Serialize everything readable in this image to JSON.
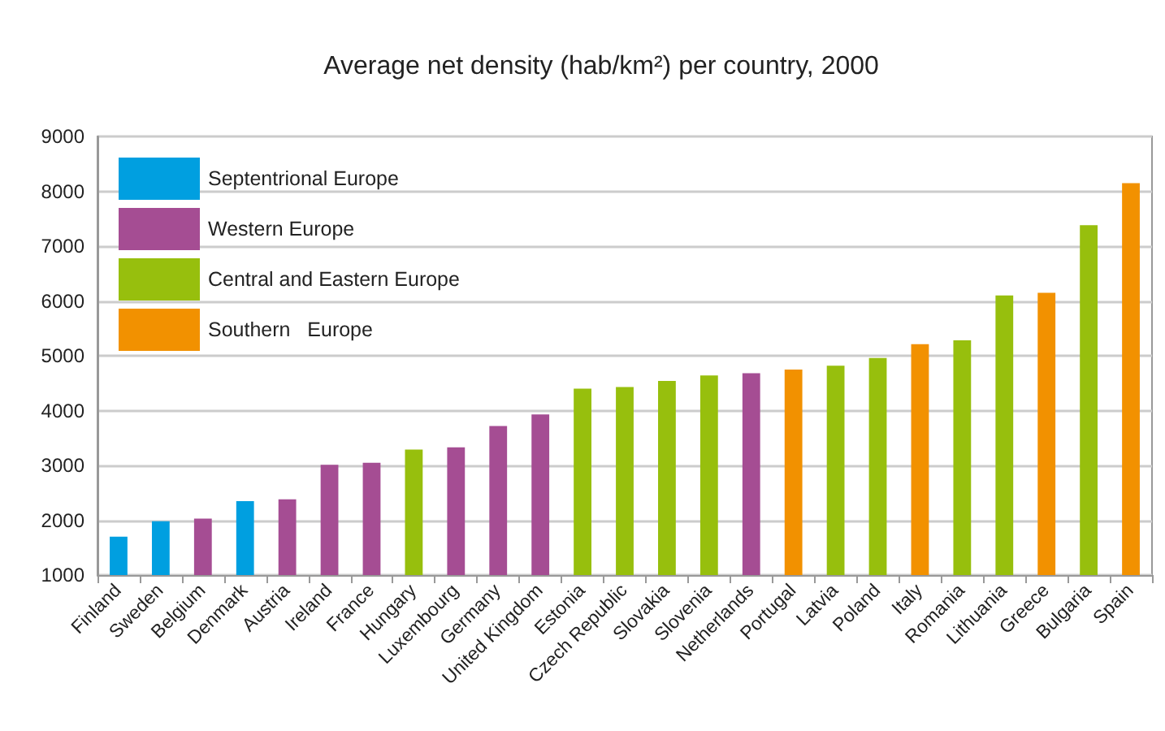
{
  "chart_data": {
    "type": "bar",
    "title": "Average net density (hab/km²) per country, 2000",
    "categories": [
      "Finland",
      "Sweden",
      "Belgium",
      "Denmark",
      "Austria",
      "Ireland",
      "France",
      "Hungary",
      "Luxembourg",
      "Germany",
      "United Kingdom",
      "Estonia",
      "Czech Republic",
      "Slovakia",
      "Slovenia",
      "Netherlands",
      "Portugal",
      "Latvia",
      "Poland",
      "Italy",
      "Romania",
      "Lithuania",
      "Greece",
      "Bulgaria",
      "Spain"
    ],
    "series": [
      {
        "name": "Septentrional Europe",
        "color": "#009fe0",
        "values": [
          1700,
          1980,
          null,
          2350,
          null,
          null,
          null,
          null,
          null,
          null,
          null,
          null,
          null,
          null,
          null,
          null,
          null,
          null,
          null,
          null,
          null,
          null,
          null,
          null,
          null
        ]
      },
      {
        "name": "Western Europe",
        "color": "#a54d93",
        "values": [
          null,
          null,
          2030,
          null,
          2380,
          3010,
          3050,
          null,
          3330,
          3720,
          3930,
          null,
          null,
          null,
          null,
          4680,
          null,
          null,
          null,
          null,
          null,
          null,
          null,
          null,
          null
        ]
      },
      {
        "name": "Central and Eastern Europe",
        "color": "#97bf0d",
        "values": [
          null,
          null,
          null,
          null,
          null,
          null,
          null,
          3290,
          null,
          null,
          null,
          4400,
          4430,
          4540,
          4640,
          null,
          null,
          4820,
          4960,
          null,
          5280,
          6100,
          null,
          7380,
          null
        ]
      },
      {
        "name": "Southern   Europe",
        "color": "#f29100",
        "values": [
          null,
          null,
          null,
          null,
          null,
          null,
          null,
          null,
          null,
          null,
          null,
          null,
          null,
          null,
          null,
          null,
          4750,
          null,
          null,
          5210,
          null,
          null,
          6150,
          null,
          8150
        ]
      }
    ],
    "ylim": [
      1000,
      9000
    ],
    "yticks": [
      1000,
      2000,
      3000,
      4000,
      5000,
      6000,
      7000,
      8000,
      9000
    ],
    "grid": "y",
    "legend": "top left"
  }
}
